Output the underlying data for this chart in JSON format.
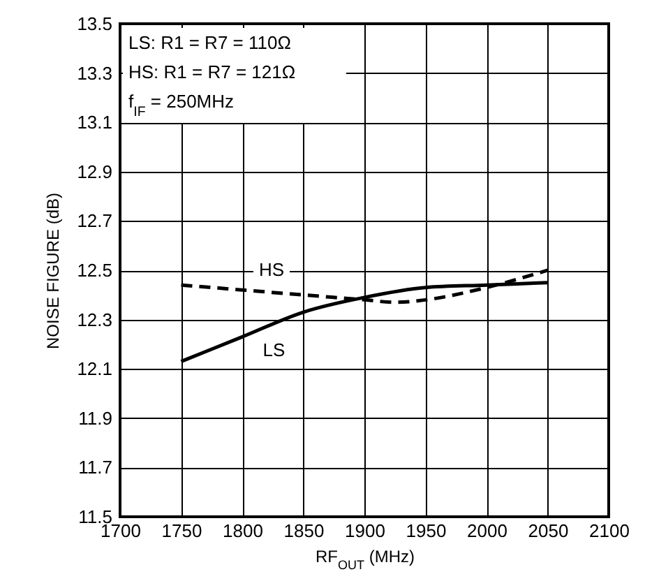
{
  "chart_data": {
    "type": "line",
    "xlabel": "RF$_{OUT}$ (MHz)",
    "ylabel": "NOISE FIGURE (dB)",
    "annotations": [
      "LS: R1 = R7 = 110Ω",
      "HS: R1 = R7 = 121Ω",
      "f$_{IF}$ = 250MHz"
    ],
    "series": [
      {
        "name": "LS",
        "color": "#000000",
        "line_style": "solid",
        "x": [
          1750,
          1800,
          1850,
          1900,
          1950,
          2000,
          2050
        ],
        "values": [
          12.13,
          12.23,
          12.33,
          12.39,
          12.43,
          12.44,
          12.45
        ]
      },
      {
        "name": "HS",
        "color": "#000000",
        "line_style": "dashed",
        "x": [
          1750,
          1800,
          1850,
          1900,
          1925,
          1950,
          2000,
          2050
        ],
        "values": [
          12.44,
          12.42,
          12.4,
          12.38,
          12.37,
          12.38,
          12.43,
          12.5
        ]
      }
    ],
    "xlim": [
      1700,
      2100
    ],
    "xticks": [
      1700,
      1750,
      1800,
      1850,
      1900,
      1950,
      2000,
      2050,
      2100
    ],
    "ylim": [
      11.5,
      13.5
    ],
    "yticks": [
      11.5,
      11.7,
      11.9,
      12.1,
      12.3,
      12.5,
      12.7,
      12.9,
      13.1,
      13.3,
      13.5
    ],
    "grid": true,
    "marker": "none"
  }
}
